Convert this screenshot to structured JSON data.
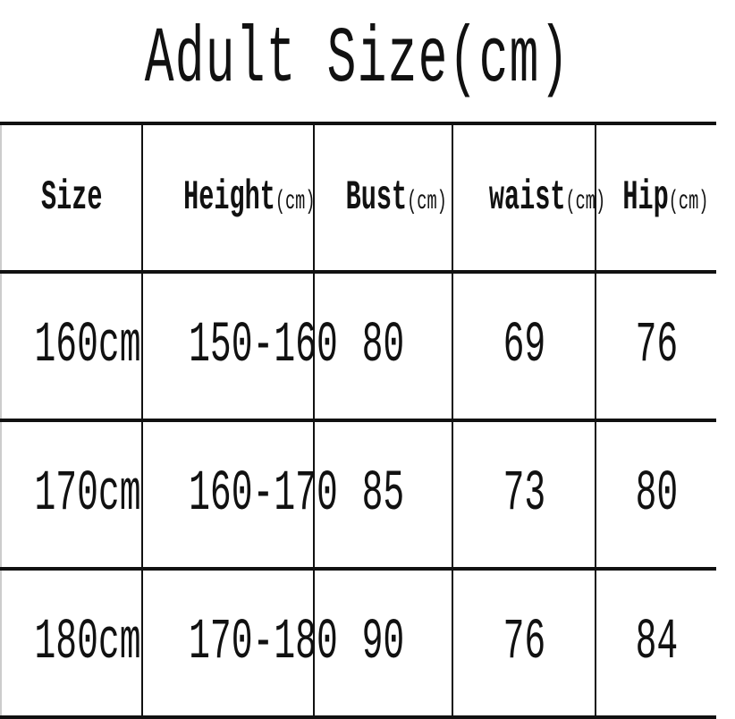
{
  "title": "Adult Size(cm)",
  "headers": [
    {
      "label": "Size",
      "unit": ""
    },
    {
      "label": "Height",
      "unit": "(cm)"
    },
    {
      "label": "Bust",
      "unit": "(cm)"
    },
    {
      "label": "waist",
      "unit": "(cm)"
    },
    {
      "label": "Hip",
      "unit": "(cm)"
    }
  ],
  "rows": [
    [
      "160cm",
      "150-160",
      "80",
      "69",
      "76"
    ],
    [
      "170cm",
      "160-170",
      "85",
      "73",
      "80"
    ],
    [
      "180cm",
      "170-180",
      "90",
      "76",
      "84"
    ]
  ]
}
